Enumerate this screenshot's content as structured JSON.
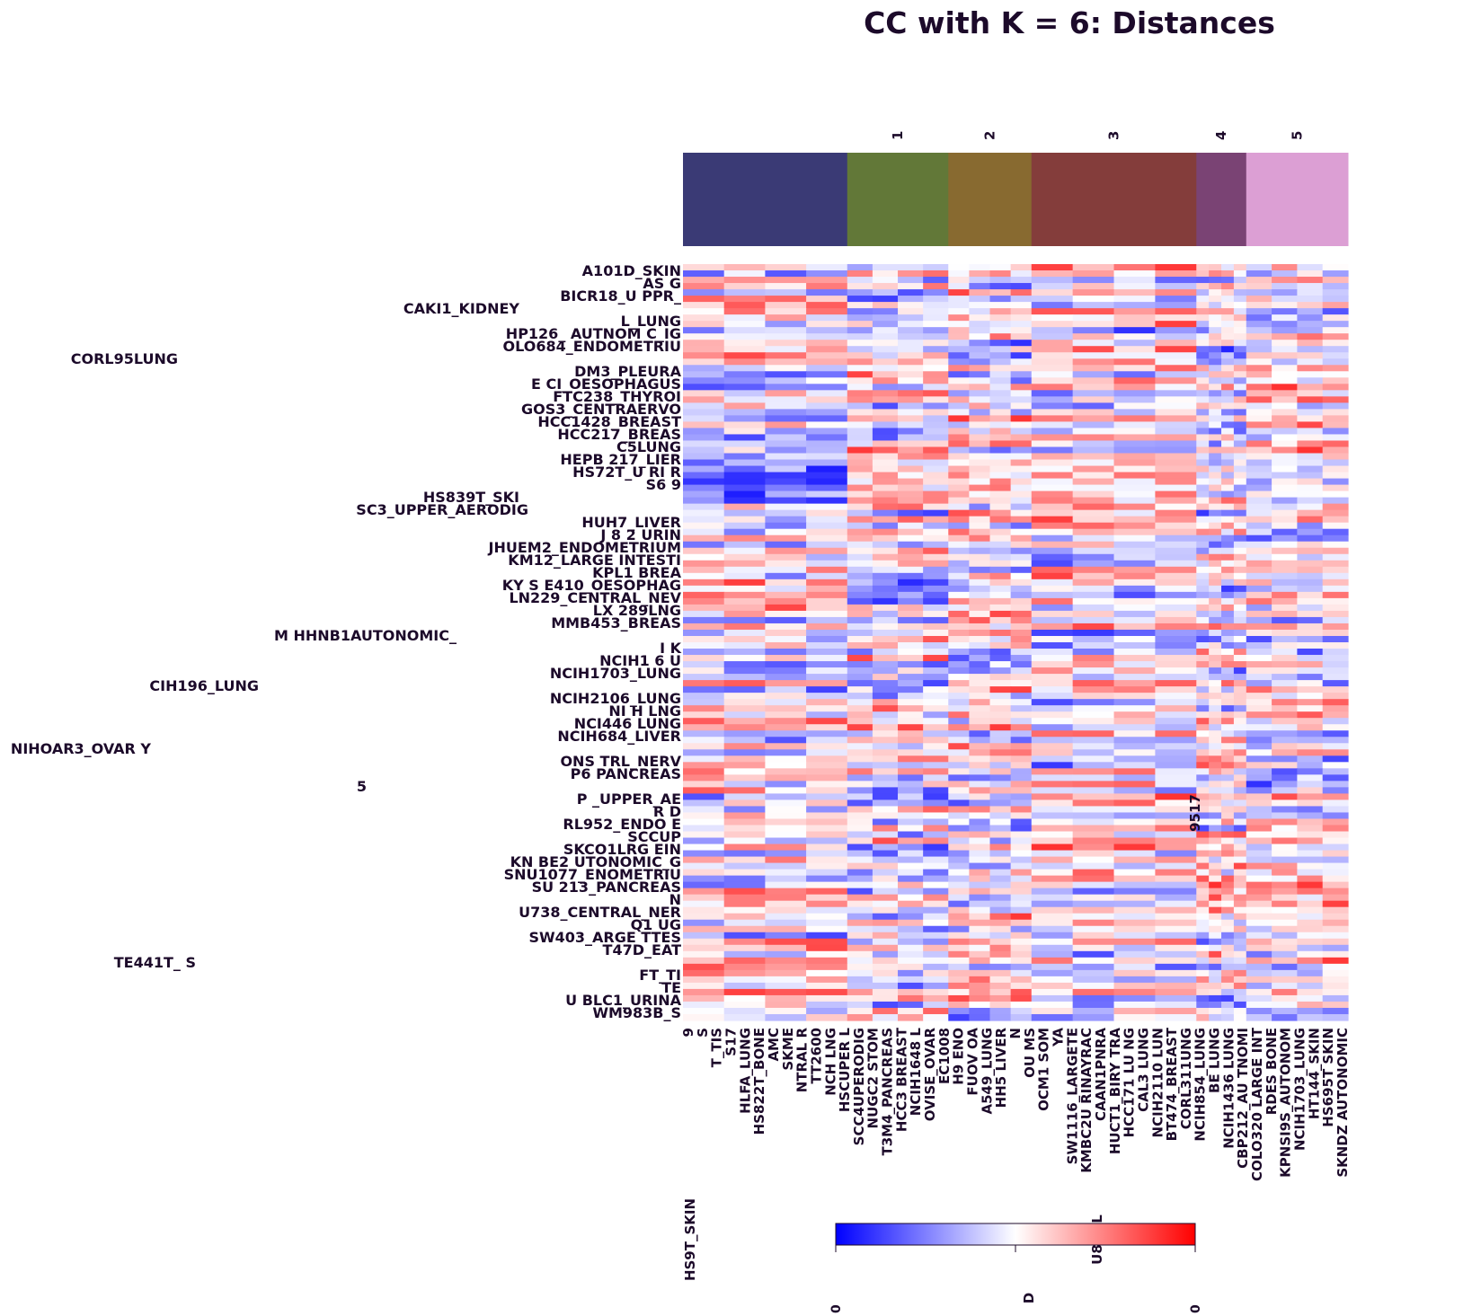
{
  "chart_data": {
    "type": "heatmap",
    "title": "CC with K = 6: Distances",
    "colormap": [
      "#0000ff",
      "#ffffff",
      "#ff0000"
    ],
    "clusters": [
      {
        "label": "",
        "color": "#3a3a75",
        "fraction": 0.247
      },
      {
        "label": "1",
        "color": "#627838",
        "fraction": 0.152
      },
      {
        "label": "2",
        "color": "#886a30",
        "fraction": 0.125
      },
      {
        "label": "3",
        "color": "#843d3b",
        "fraction": 0.248
      },
      {
        "label": "4",
        "color": "#7a4374",
        "fraction": 0.075
      },
      {
        "label": "5",
        "color": "#dc9fd4",
        "fraction": 0.153
      }
    ],
    "row_labels": [
      "A101D_SKIN",
      "AS G",
      "BICR18_U PPR_",
      "CAKI1_KIDNEY",
      "L_LUNG",
      "HP126_ AUTNOM C_IG",
      "OLO684_ENDOMETRIU",
      "CORL95LUNG",
      "DM3_PLEURA",
      "E CI_OESOPHAGUS",
      "FTC238_THYROI",
      "GOS3_CENTRAERVO",
      "HCC1428_BREAST",
      "HCC217_BREAS",
      "C5LUNG",
      "HEPB 217_LIER",
      "HS72T_U RI R",
      "S6 9",
      "HS839T_SKI",
      "SC3_UPPER_AERODIG",
      "HUH7_LIVER",
      "J 8 2 URIN",
      "JHUEM2_ENDOMETRIUM",
      "KM12_LARGE INTESTI",
      "KPL1 BREA",
      "KY S E410_OESOPHAG",
      "LN229_CENTRAL_NEV",
      "LX 289LNG",
      "MMB453_BREAS",
      "M HHNB1AUTONOMIC_",
      "I K",
      "NCIH1 6 U",
      "NCIH1703_LUNG",
      "CIH196_LUNG",
      "NCIH2106_LUNG",
      "NI H LNG",
      "NCI446 LUNG",
      "NCIH684_LIVER",
      "NIHOAR3_OVAR Y",
      "ONS TRL_NERV",
      "P6 PANCREAS",
      "5",
      "P _UPPER_AE",
      "R D",
      "RL952_ENDO E",
      "SCCUP",
      "SKCO1LRG EIN",
      "KN BE2 UTONOMIC_G",
      "SNU1077_ENOMETRIU",
      "SU 213_PANCREAS",
      "N",
      "U738_CENTRAL_NER",
      "Q1 UG",
      "SW403_ARGE TTES",
      "T47D_EAT",
      "TE441T_ S",
      "FT_TI",
      "TE",
      "U BLC1_URINA",
      "WM983B_S"
    ],
    "col_labels": [
      "9",
      "S",
      "T_TIS",
      "S17",
      "HLFA_LUNG",
      "HS822T_BONE",
      "AMC",
      "SKME",
      "NTRAL R",
      "TT2600",
      "NCH LNG",
      "HSCUPER L",
      "SCC4UPERODIG",
      "NUGC2 STOM",
      "T3M4_PANCREAS",
      "HCC3 BREAST",
      "NCIH1648 L",
      "OVISE_OVAR",
      "EC1008",
      "H9 ENO",
      "FUOV OA",
      "A549_LUNG",
      "HH5 LIVER",
      "N",
      "OU MS",
      "OCM1 SOM",
      "YA",
      "SW1116_LARGETE",
      "KMBC2U RINAYRAC",
      "CAAN1PNRA",
      "HUCT1_BIRY TRA",
      "HCC171 LU NG",
      "CAL3 LUNG",
      "NCIH2110 LUN",
      "BT474_BREAST",
      "CORL311UNG",
      "NCIH854_LUNG",
      "BE LUNG",
      "NCIH1436 LUNG",
      "CBP212_AU TNOMI",
      "COLO320 LARGE INT",
      "RDES BONE",
      "KPNSI9S_AUTONOM",
      "NCIH1703_LUNG",
      "HT144_SKIN",
      "HS695T SKIN",
      "SKNDZ AUTONOMIC"
    ],
    "stray_labels": [
      "9517",
      "HS9T_SKIN",
      "U89_IL",
      "D"
    ],
    "colorbar": {
      "ticks": [
        "0",
        "",
        "0"
      ]
    }
  }
}
